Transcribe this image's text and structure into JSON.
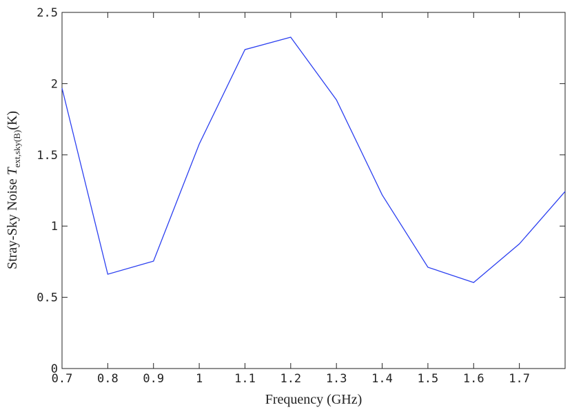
{
  "chart_data": {
    "type": "line",
    "x_label": "Frequency (GHz)",
    "y_label": {
      "text": "Stray-Sky Noise",
      "symbol": "T",
      "subscript": "ext,sky(B)",
      "unit": "(K)"
    },
    "x": [
      0.7,
      0.8,
      0.9,
      1.0,
      1.1,
      1.2,
      1.3,
      1.4,
      1.5,
      1.6,
      1.7,
      1.8
    ],
    "series": [
      {
        "color": "#2b3ff0",
        "values": [
          1.968,
          0.662,
          0.754,
          1.576,
          2.239,
          2.326,
          1.886,
          1.219,
          0.711,
          0.604,
          0.875,
          1.243
        ]
      }
    ],
    "xlim": [
      0.7,
      1.8
    ],
    "xticks": [
      0.7,
      0.8,
      0.9,
      1,
      1.1,
      1.2,
      1.3,
      1.4,
      1.5,
      1.6,
      1.7
    ],
    "ylim": [
      0,
      2.5
    ],
    "yticks": [
      0,
      0.5,
      1,
      1.5,
      2,
      2.5
    ],
    "grid": false
  }
}
